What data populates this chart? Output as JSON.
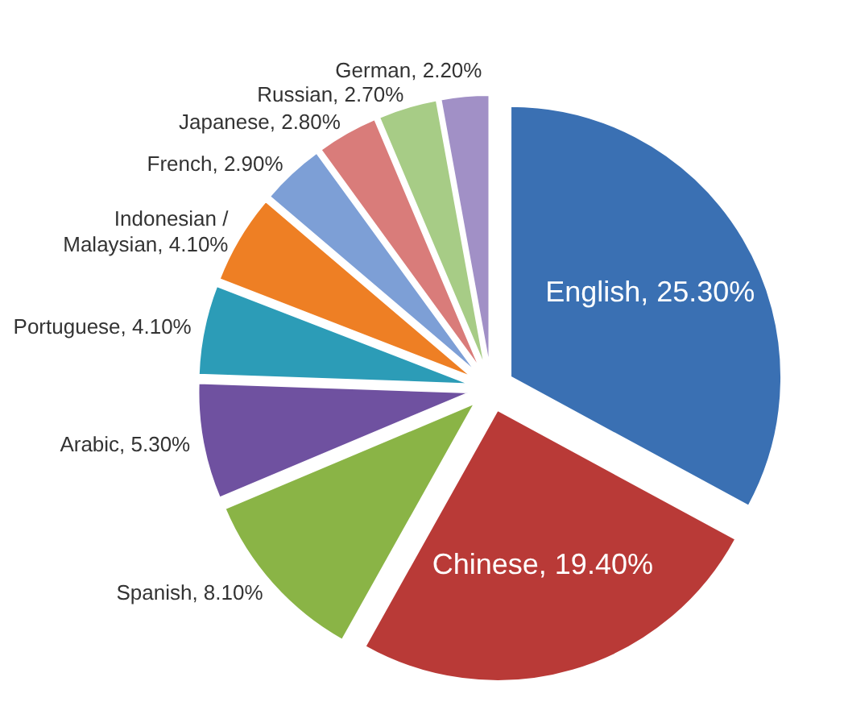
{
  "chart_data": {
    "type": "pie",
    "categories": [
      "English",
      "Chinese",
      "Spanish",
      "Arabic",
      "Portuguese",
      "Indonesian / Malaysian",
      "French",
      "Japanese",
      "Russian",
      "German"
    ],
    "values": [
      25.3,
      19.4,
      8.1,
      5.3,
      4.1,
      4.1,
      2.9,
      2.8,
      2.7,
      2.2
    ],
    "value_labels": [
      "25.30%",
      "19.40%",
      "8.10%",
      "5.30%",
      "4.10%",
      "4.10%",
      "2.90%",
      "2.80%",
      "2.70%",
      "2.20%"
    ],
    "colors": [
      "#3a70b3",
      "#b93a37",
      "#8ab446",
      "#6f51a0",
      "#2c9cb7",
      "#ee7f24",
      "#7d9fd6",
      "#d97c7a",
      "#a7cc86",
      "#a190c6"
    ]
  }
}
